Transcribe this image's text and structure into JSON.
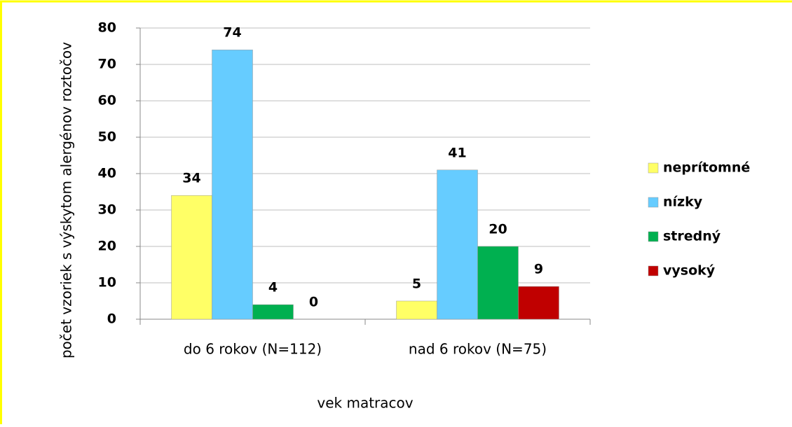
{
  "chart_data": {
    "type": "bar",
    "y_axis_label": "počet vzoriek s výskytom alergénov roztočov",
    "x_axis_label": "vek matracov",
    "categories": [
      "do 6 rokov (N=112)",
      "nad 6 rokov (N=75)"
    ],
    "series": [
      {
        "name": "neprítomné",
        "color": "#ffff66",
        "values": [
          34,
          5
        ]
      },
      {
        "name": "nízky",
        "color": "#66ccff",
        "values": [
          74,
          41
        ]
      },
      {
        "name": "stredný",
        "color": "#00b050",
        "values": [
          4,
          20
        ]
      },
      {
        "name": "vysoký",
        "color": "#c00000",
        "values": [
          0,
          9
        ]
      }
    ],
    "ylim": [
      0,
      80
    ],
    "yticks": [
      0,
      10,
      20,
      30,
      40,
      50,
      60,
      70,
      80
    ],
    "grid": true,
    "legend": "right"
  }
}
